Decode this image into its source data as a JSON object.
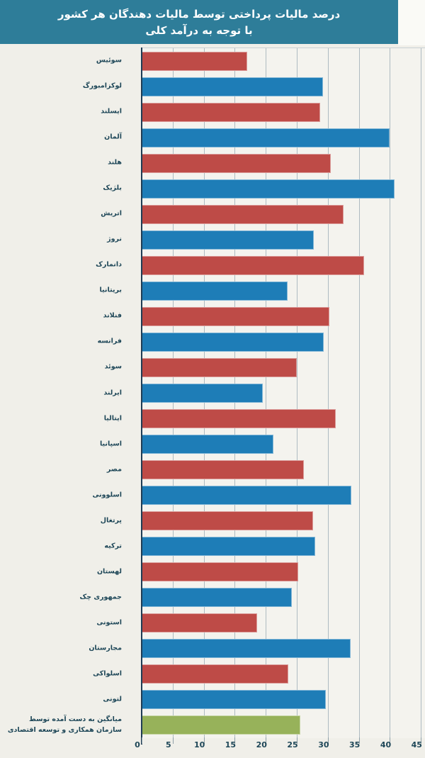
{
  "title": {
    "line1": "درصد مالیات پرداختی توسط مالیات دهندگان هر کشور",
    "line2": "با توجه به درآمد کلی"
  },
  "colors": {
    "red": "#BE4B47",
    "blue": "#1E7DB7",
    "green": "#97B25A",
    "title_bg": "#2E7D99",
    "page_bg": "#F0EFE9",
    "plot_bg": "#F4F3EE",
    "grid": "#AEBBC1",
    "axis": "#1F3D55",
    "text": "#1D4657"
  },
  "chart_data": {
    "type": "bar",
    "orientation": "horizontal",
    "title": "درصد مالیات پرداختی توسط مالیات دهندگان هر کشور با توجه به درآمد کلی",
    "xlabel": "",
    "ylabel": "",
    "xlim": [
      0,
      45
    ],
    "x_ticks": [
      0,
      5,
      10,
      15,
      20,
      25,
      30,
      35,
      40,
      45
    ],
    "grid": true,
    "legend": false,
    "categories": [
      "سوئیس",
      "لوکزامبورگ",
      "ایسلند",
      "آلمان",
      "هلند",
      "بلژیک",
      "اتریش",
      "نروژ",
      "دانمارک",
      "بریتانیا",
      "فنلاند",
      "فرانسه",
      "سوئد",
      "ایرلند",
      "ایتالیا",
      "اسپانیا",
      "مصر",
      "اسلوونی",
      "پرتغال",
      "ترکیه",
      "لهستان",
      "جمهوری چک",
      "استونی",
      "مجارستان",
      "اسلواکی",
      "لتونی",
      "میانگین به دست آمده توسط سازمان همکاری و توسعه اقتصادی"
    ],
    "values": [
      17.0,
      29.2,
      28.8,
      40.0,
      30.5,
      40.7,
      32.5,
      27.7,
      35.8,
      23.5,
      30.3,
      29.3,
      25.0,
      19.5,
      31.3,
      21.2,
      26.1,
      33.8,
      27.6,
      28.0,
      25.2,
      24.2,
      18.6,
      33.7,
      23.6,
      29.7,
      25.6
    ],
    "bar_colors": [
      "red",
      "blue",
      "red",
      "blue",
      "red",
      "blue",
      "red",
      "blue",
      "red",
      "blue",
      "red",
      "blue",
      "red",
      "blue",
      "red",
      "blue",
      "red",
      "blue",
      "red",
      "blue",
      "red",
      "blue",
      "red",
      "blue",
      "red",
      "blue",
      "green"
    ]
  }
}
